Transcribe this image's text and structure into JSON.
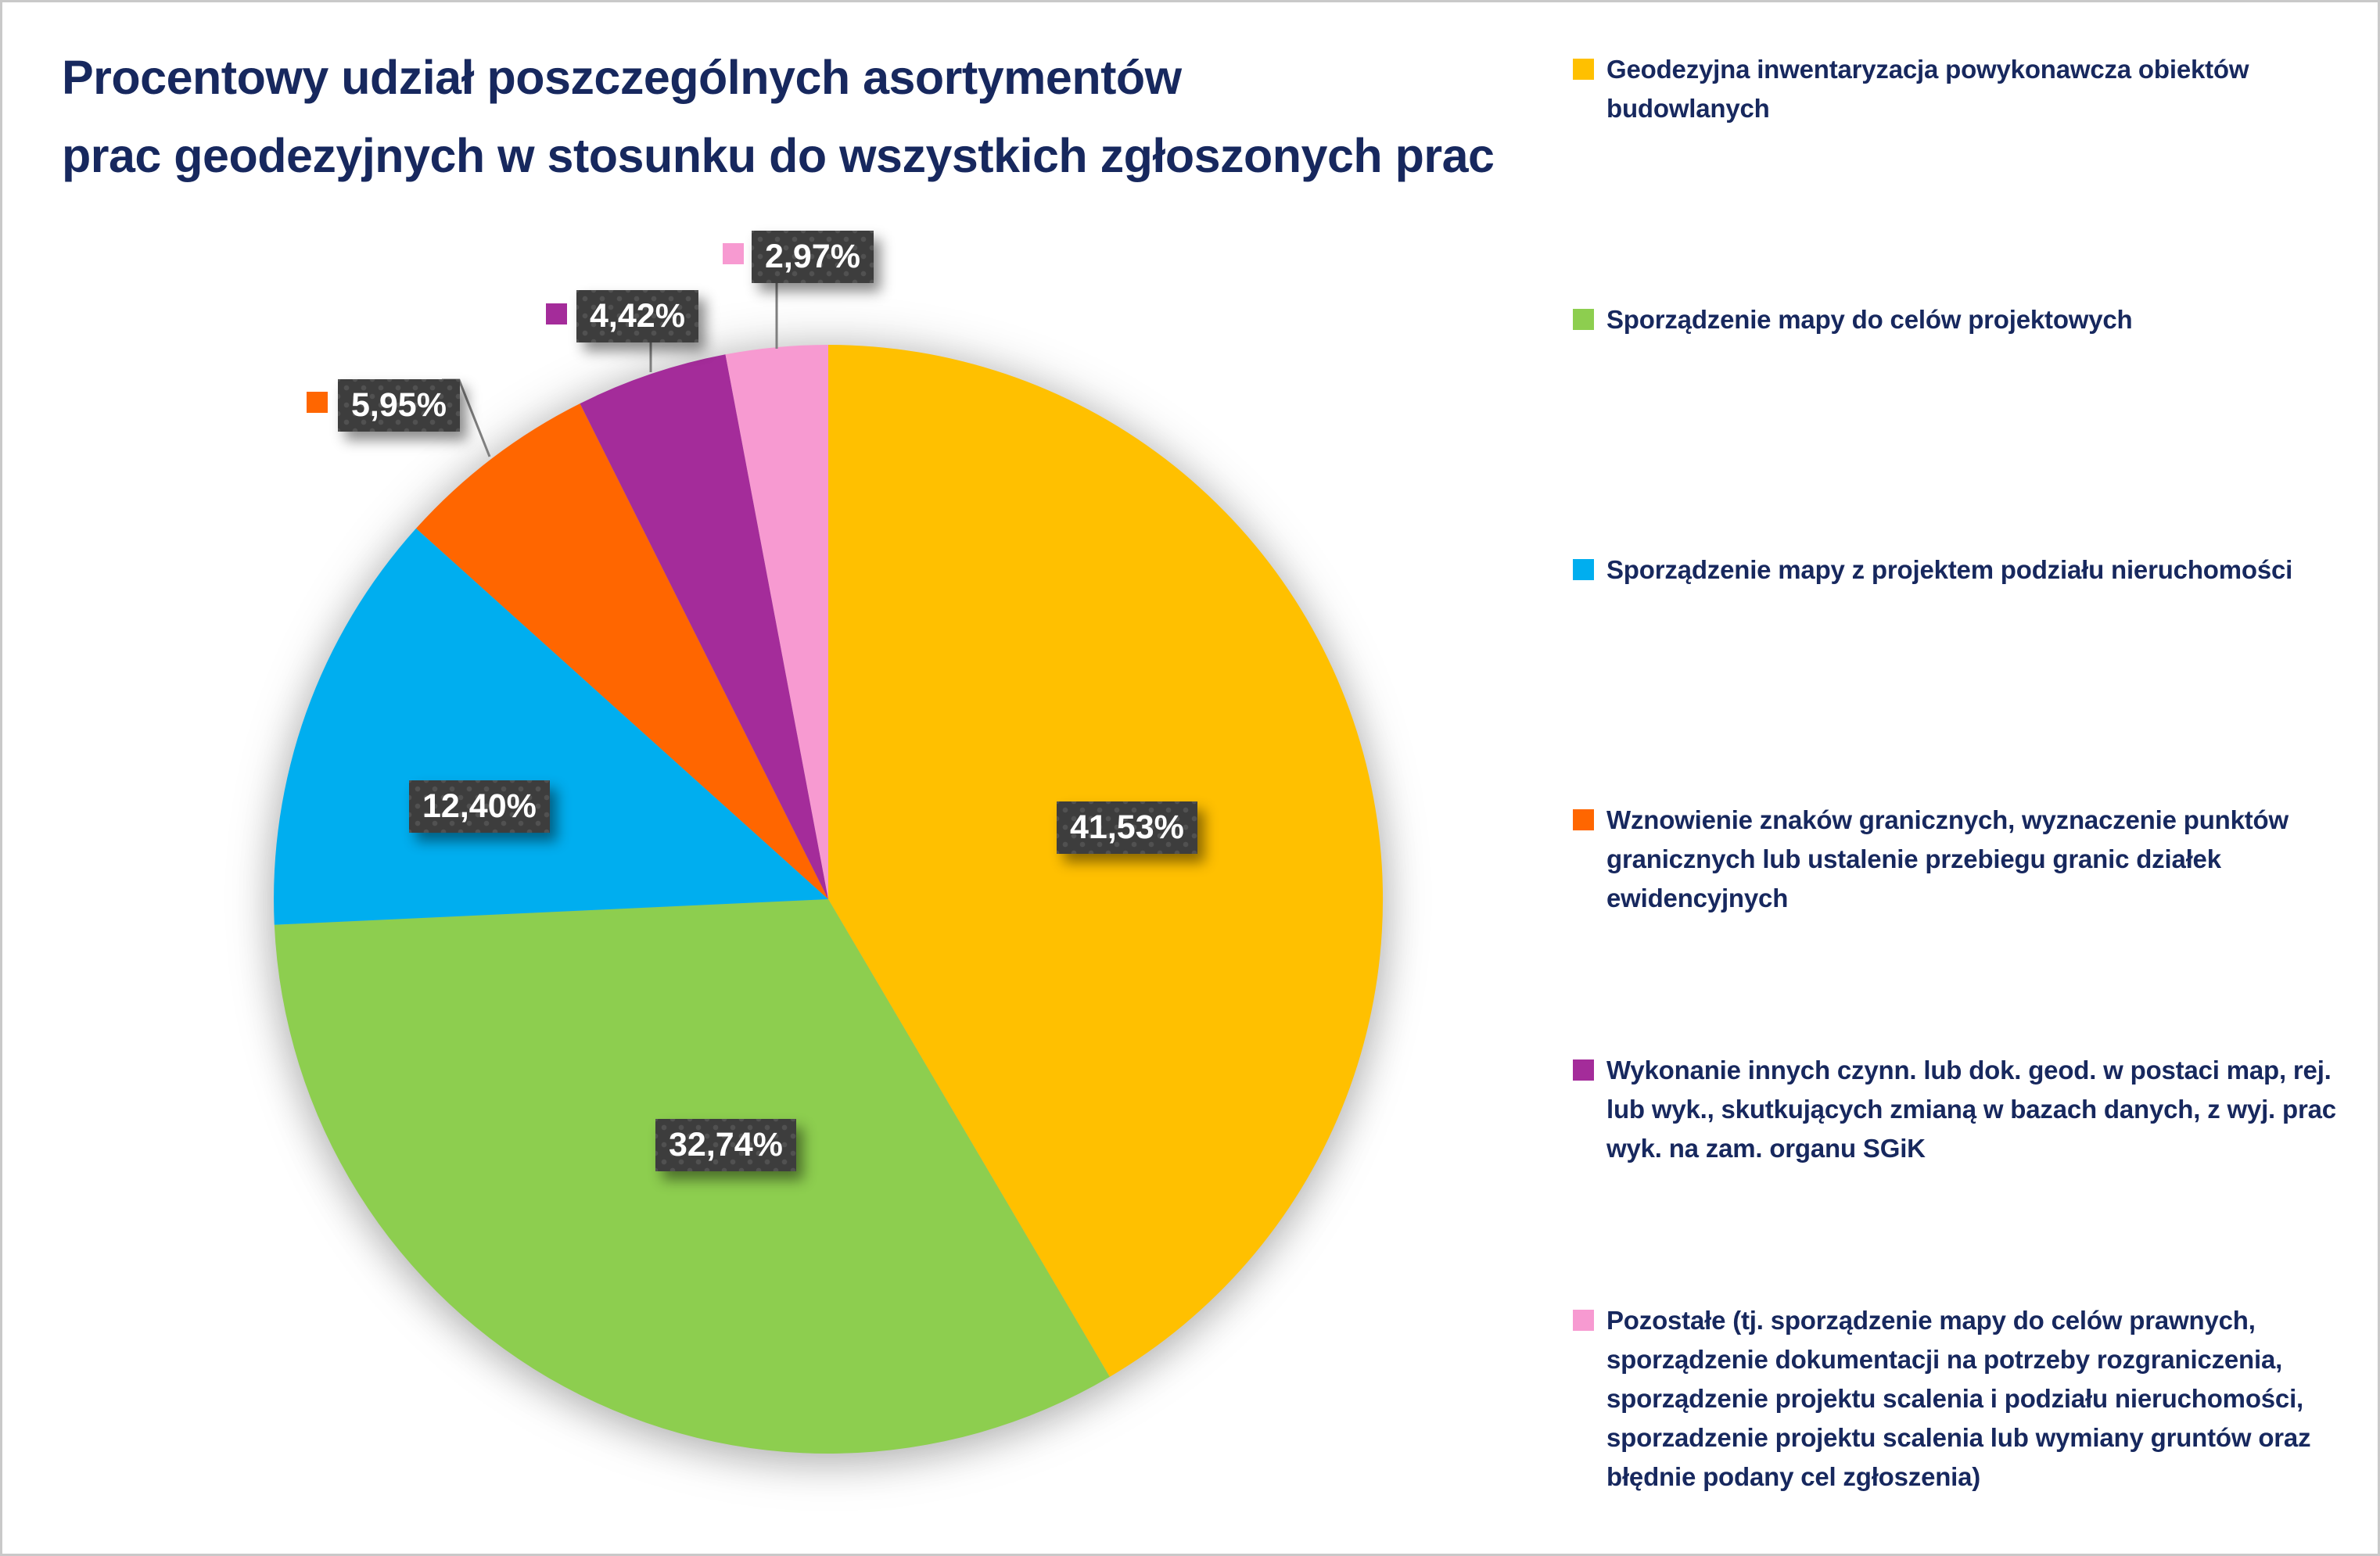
{
  "title": {
    "lines": [
      "Procentowy udział poszczególnych asortymentów",
      "prac geodezyjnych w stosunku do wszystkich zgłoszonych prac"
    ]
  },
  "colors": {
    "title_text": "#17285E",
    "label_box_background": "#3D3D3D",
    "label_text": "#FFFFFF",
    "leader_line": "#7F7F7F",
    "canvas_border": "#C9C9C9"
  },
  "chart_data": {
    "type": "pie",
    "title": "Procentowy udział poszczególnych asortymentów prac geodezyjnych w stosunku do wszystkich zgłoszonych prac",
    "legend_position": "right",
    "start_angle_deg": 0,
    "direction": "clockwise",
    "value_format": "percent, comma decimal separator",
    "slices": [
      {
        "label": "Geodezyjna inwentaryzacja powykonawcza obiektów budowlanych",
        "value": 41.53,
        "display": "41,53%",
        "color": "#FFC000",
        "label_placement": "inside"
      },
      {
        "label": "Sporządzenie mapy do celów projektowych",
        "value": 32.74,
        "display": "32,74%",
        "color": "#8DCE4F",
        "label_placement": "inside"
      },
      {
        "label": "Sporządzenie mapy z projektem podziału nieruchomości",
        "value": 12.4,
        "display": "12,40%",
        "color": "#00AEEF",
        "label_placement": "inside"
      },
      {
        "label": "Wznowienie znaków granicznych, wyznaczenie punktów granicznych lub ustalenie przebiegu granic działek ewidencyjnych",
        "value": 5.95,
        "display": "5,95%",
        "color": "#FF6600",
        "label_placement": "callout"
      },
      {
        "label": "Wykonanie innych czynn. lub dok. geod. w postaci map, rej. lub wyk., skutkujących zmianą w bazach danych, z wyj. prac wyk. na zam. organu SGiK",
        "value": 4.42,
        "display": "4,42%",
        "color": "#A42C9A",
        "label_placement": "callout"
      },
      {
        "label": "Pozostałe (tj. sporządzenie mapy do celów prawnych, sporządzenie dokumentacji na potrzeby rozgraniczenia, sporządzenie projektu scalenia i podziału nieruchomości, sporzadzenie projektu scalenia lub wymiany gruntów oraz błędnie podany cel zgłoszenia)",
        "value": 2.97,
        "display": "2,97%",
        "color": "#F79AD1",
        "label_placement": "callout"
      }
    ]
  }
}
